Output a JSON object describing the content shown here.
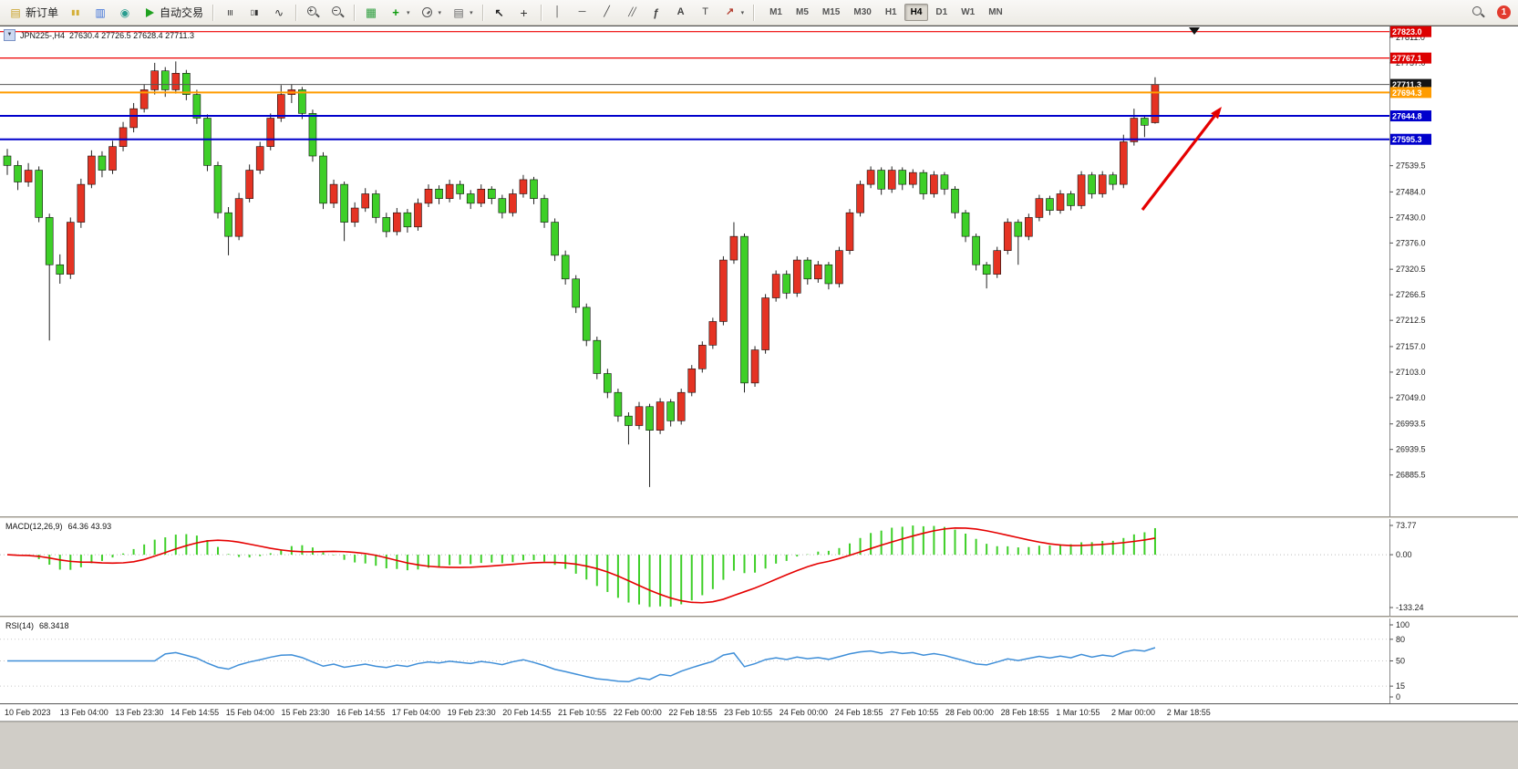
{
  "toolbar": {
    "new_order": "新订单",
    "autotrading": "自动交易",
    "badge": "1",
    "timeframes": [
      "M1",
      "M5",
      "M15",
      "M30",
      "H1",
      "H4",
      "D1",
      "W1",
      "MN"
    ],
    "active_timeframe": "H4",
    "items": [
      {
        "kind": "textbtn",
        "name": "new-order-button",
        "icon": "ico-neworder",
        "label_key": "new_order"
      },
      {
        "kind": "icon",
        "name": "charts-button",
        "icon": "ico-charts"
      },
      {
        "kind": "icon",
        "name": "market-watch-button",
        "icon": "ico-marketwatch"
      },
      {
        "kind": "icon",
        "name": "navigator-button",
        "icon": "ico-navigator"
      },
      {
        "kind": "textbtn",
        "name": "autotrading-button",
        "icon": "ico-play",
        "label_key": "autotrading"
      },
      {
        "kind": "sep"
      },
      {
        "kind": "icon",
        "name": "bar-chart-button",
        "icon": "ico-bars"
      },
      {
        "kind": "icon",
        "name": "candlestick-chart-button",
        "icon": "ico-candles"
      },
      {
        "kind": "icon",
        "name": "line-chart-button",
        "icon": "ico-line"
      },
      {
        "kind": "sep"
      },
      {
        "kind": "icon",
        "name": "zoom-in-button",
        "icon": "ico-zoomin"
      },
      {
        "kind": "icon",
        "name": "zoom-out-button",
        "icon": "ico-zoomout"
      },
      {
        "kind": "sep"
      },
      {
        "kind": "icon",
        "name": "tile-windows-button",
        "icon": "ico-tile"
      },
      {
        "kind": "iconcaret",
        "name": "indicators-button",
        "icon": "ico-indicator"
      },
      {
        "kind": "iconcaret",
        "name": "periods-button",
        "icon": "ico-clock"
      },
      {
        "kind": "iconcaret",
        "name": "templates-button",
        "icon": "ico-template"
      },
      {
        "kind": "sep"
      },
      {
        "kind": "icon",
        "name": "cursor-button",
        "icon": "ico-cursor"
      },
      {
        "kind": "icon",
        "name": "crosshair-button",
        "icon": "ico-crosshair"
      },
      {
        "kind": "sep"
      },
      {
        "kind": "icon",
        "name": "vertical-line-button",
        "icon": "ico-vline"
      },
      {
        "kind": "icon",
        "name": "horizontal-line-button",
        "icon": "ico-hline"
      },
      {
        "kind": "icon",
        "name": "trendline-button",
        "icon": "ico-trendline"
      },
      {
        "kind": "icon",
        "name": "equidistant-channel-button",
        "icon": "ico-channel"
      },
      {
        "kind": "icon",
        "name": "fibonacci-button",
        "icon": "ico-fibo"
      },
      {
        "kind": "icon",
        "name": "text-tool-button",
        "icon": "ico-text"
      },
      {
        "kind": "icon",
        "name": "text-label-button",
        "icon": "ico-label"
      },
      {
        "kind": "iconcaret",
        "name": "arrows-tool-button",
        "icon": "ico-shapes"
      },
      {
        "kind": "sep"
      },
      {
        "kind": "tfs"
      }
    ]
  },
  "chart": {
    "title": {
      "symbol": "JPN225-,H4",
      "ohlc": "27630.4 27726.5 27628.4 27711.3"
    },
    "y_range": [
      26800,
      27832
    ],
    "top_marker_x": 1310,
    "y_axis_ticks": [
      27811.0,
      27757.0,
      27539.5,
      27484.0,
      27430.0,
      27376.0,
      27320.5,
      27266.5,
      27212.5,
      27157.0,
      27103.0,
      27049.0,
      26993.5,
      26939.5,
      26885.5
    ],
    "price_lines": [
      {
        "label": "27823.0",
        "price": 27823.0,
        "color": "#ee0000",
        "box": "#dd0000",
        "width": 1.2,
        "name": "resistance-line-upper"
      },
      {
        "label": "27767.1",
        "price": 27767.1,
        "color": "#ee0000",
        "box": "#dd0000",
        "width": 1.2,
        "name": "resistance-line"
      },
      {
        "label": "27711.3",
        "price": 27711.3,
        "color": "#555555",
        "box": "#141414",
        "width": 1,
        "name": "current-price-line"
      },
      {
        "label": "27694.3",
        "price": 27694.3,
        "color": "#ff9c00",
        "box": "#ff9c00",
        "width": 2,
        "name": "orange-level-line"
      },
      {
        "label": "27644.8",
        "price": 27644.8,
        "color": "#0000cc",
        "box": "#0000cc",
        "width": 2,
        "name": "support-line-1"
      },
      {
        "label": "27595.3",
        "price": 27595.3,
        "color": "#0000cc",
        "box": "#0000cc",
        "width": 2,
        "name": "support-line-2"
      }
    ]
  },
  "chart_data": {
    "type": "candlestick",
    "symbol": "JPN225-",
    "timeframe": "H4",
    "current_bar": {
      "open": 27630.4,
      "high": 27726.5,
      "low": 27628.4,
      "close": 27711.3
    },
    "up_color": "#e53323",
    "down_color": "#3ecf28",
    "candles": [
      [
        27560,
        27575,
        27520,
        27540
      ],
      [
        27540,
        27550,
        27488,
        27505
      ],
      [
        27505,
        27545,
        27495,
        27530
      ],
      [
        27530,
        27538,
        27420,
        27430
      ],
      [
        27430,
        27438,
        27170,
        27330
      ],
      [
        27330,
        27352,
        27290,
        27310
      ],
      [
        27310,
        27430,
        27300,
        27420
      ],
      [
        27420,
        27512,
        27408,
        27500
      ],
      [
        27500,
        27572,
        27492,
        27560
      ],
      [
        27560,
        27570,
        27515,
        27530
      ],
      [
        27530,
        27592,
        27522,
        27580
      ],
      [
        27580,
        27632,
        27570,
        27620
      ],
      [
        27620,
        27672,
        27610,
        27660
      ],
      [
        27660,
        27712,
        27652,
        27700
      ],
      [
        27700,
        27757,
        27690,
        27740
      ],
      [
        27740,
        27748,
        27685,
        27700
      ],
      [
        27700,
        27760,
        27692,
        27735
      ],
      [
        27735,
        27742,
        27678,
        27690
      ],
      [
        27690,
        27700,
        27628,
        27640
      ],
      [
        27640,
        27648,
        27528,
        27540
      ],
      [
        27540,
        27548,
        27428,
        27440
      ],
      [
        27440,
        27452,
        27350,
        27390
      ],
      [
        27390,
        27482,
        27382,
        27470
      ],
      [
        27470,
        27542,
        27462,
        27530
      ],
      [
        27530,
        27590,
        27522,
        27580
      ],
      [
        27580,
        27650,
        27572,
        27640
      ],
      [
        27640,
        27710,
        27632,
        27690
      ],
      [
        27690,
        27712,
        27672,
        27700
      ],
      [
        27700,
        27706,
        27638,
        27650
      ],
      [
        27650,
        27658,
        27548,
        27560
      ],
      [
        27560,
        27568,
        27448,
        27460
      ],
      [
        27460,
        27510,
        27450,
        27500
      ],
      [
        27500,
        27506,
        27380,
        27420
      ],
      [
        27420,
        27462,
        27410,
        27450
      ],
      [
        27450,
        27492,
        27442,
        27480
      ],
      [
        27480,
        27488,
        27418,
        27430
      ],
      [
        27430,
        27440,
        27388,
        27400
      ],
      [
        27400,
        27450,
        27392,
        27440
      ],
      [
        27440,
        27448,
        27398,
        27410
      ],
      [
        27410,
        27470,
        27402,
        27460
      ],
      [
        27460,
        27500,
        27452,
        27490
      ],
      [
        27490,
        27498,
        27458,
        27470
      ],
      [
        27470,
        27510,
        27462,
        27500
      ],
      [
        27500,
        27508,
        27468,
        27480
      ],
      [
        27480,
        27488,
        27448,
        27460
      ],
      [
        27460,
        27500,
        27452,
        27490
      ],
      [
        27490,
        27496,
        27458,
        27470
      ],
      [
        27470,
        27478,
        27428,
        27440
      ],
      [
        27440,
        27490,
        27432,
        27480
      ],
      [
        27480,
        27520,
        27472,
        27510
      ],
      [
        27510,
        27516,
        27458,
        27470
      ],
      [
        27470,
        27478,
        27408,
        27420
      ],
      [
        27420,
        27428,
        27338,
        27350
      ],
      [
        27350,
        27360,
        27288,
        27300
      ],
      [
        27300,
        27308,
        27228,
        27240
      ],
      [
        27240,
        27248,
        27158,
        27170
      ],
      [
        27170,
        27178,
        27088,
        27100
      ],
      [
        27100,
        27110,
        27048,
        27060
      ],
      [
        27060,
        27068,
        26998,
        27010
      ],
      [
        27010,
        27018,
        26950,
        26990
      ],
      [
        26990,
        27040,
        26982,
        27030
      ],
      [
        27030,
        27036,
        26860,
        26980
      ],
      [
        26980,
        27048,
        26972,
        27040
      ],
      [
        27040,
        27046,
        26988,
        27000
      ],
      [
        27000,
        27068,
        26992,
        27060
      ],
      [
        27060,
        27118,
        27052,
        27110
      ],
      [
        27110,
        27168,
        27102,
        27160
      ],
      [
        27160,
        27218,
        27152,
        27210
      ],
      [
        27210,
        27348,
        27202,
        27340
      ],
      [
        27340,
        27420,
        27332,
        27390
      ],
      [
        27390,
        27396,
        27060,
        27080
      ],
      [
        27080,
        27158,
        27072,
        27150
      ],
      [
        27150,
        27268,
        27142,
        27260
      ],
      [
        27260,
        27318,
        27252,
        27310
      ],
      [
        27310,
        27318,
        27258,
        27270
      ],
      [
        27270,
        27348,
        27262,
        27340
      ],
      [
        27340,
        27346,
        27288,
        27300
      ],
      [
        27300,
        27338,
        27292,
        27330
      ],
      [
        27330,
        27336,
        27278,
        27290
      ],
      [
        27290,
        27368,
        27282,
        27360
      ],
      [
        27360,
        27448,
        27352,
        27440
      ],
      [
        27440,
        27508,
        27432,
        27500
      ],
      [
        27500,
        27538,
        27492,
        27530
      ],
      [
        27530,
        27536,
        27478,
        27490
      ],
      [
        27490,
        27538,
        27482,
        27530
      ],
      [
        27530,
        27536,
        27488,
        27500
      ],
      [
        27500,
        27532,
        27492,
        27525
      ],
      [
        27525,
        27531,
        27468,
        27480
      ],
      [
        27480,
        27528,
        27472,
        27520
      ],
      [
        27520,
        27526,
        27478,
        27490
      ],
      [
        27490,
        27496,
        27428,
        27440
      ],
      [
        27440,
        27446,
        27378,
        27390
      ],
      [
        27390,
        27396,
        27318,
        27330
      ],
      [
        27330,
        27336,
        27280,
        27310
      ],
      [
        27310,
        27368,
        27302,
        27360
      ],
      [
        27360,
        27428,
        27352,
        27420
      ],
      [
        27420,
        27426,
        27330,
        27390
      ],
      [
        27390,
        27438,
        27382,
        27430
      ],
      [
        27430,
        27478,
        27422,
        27470
      ],
      [
        27470,
        27476,
        27435,
        27445
      ],
      [
        27445,
        27488,
        27438,
        27480
      ],
      [
        27480,
        27486,
        27445,
        27455
      ],
      [
        27455,
        27528,
        27448,
        27520
      ],
      [
        27520,
        27526,
        27470,
        27480
      ],
      [
        27480,
        27528,
        27472,
        27520
      ],
      [
        27520,
        27526,
        27488,
        27500
      ],
      [
        27500,
        27605,
        27492,
        27590
      ],
      [
        27590,
        27660,
        27582,
        27640
      ],
      [
        27640,
        27646,
        27600,
        27625
      ],
      [
        27630.4,
        27726.5,
        27628.4,
        27711.3
      ]
    ],
    "time_labels": [
      "10 Feb 2023",
      "13 Feb 04:00",
      "13 Feb 23:30",
      "14 Feb 14:55",
      "15 Feb 04:00",
      "15 Feb 23:30",
      "16 Feb 14:55",
      "17 Feb 04:00",
      "19 Feb 23:30",
      "20 Feb 14:55",
      "21 Feb 10:55",
      "22 Feb 00:00",
      "22 Feb 18:55",
      "23 Feb 10:55",
      "24 Feb 00:00",
      "24 Feb 18:55",
      "27 Feb 10:55",
      "28 Feb 00:00",
      "28 Feb 18:55",
      "1 Mar 10:55",
      "2 Mar 00:00",
      "2 Mar 18:55"
    ]
  },
  "macd": {
    "title": "MACD(12,26,9)",
    "values": "64.36 43.93",
    "params": [
      12,
      26,
      9
    ],
    "axis_labels": [
      "73.77",
      "0.00",
      "-133.24"
    ],
    "range": [
      -133.24,
      73.77
    ],
    "histogram_color": "#3ecf28",
    "signal_color": "#e50000"
  },
  "rsi": {
    "title": "RSI(14)",
    "value": "68.3418",
    "period": 14,
    "levels": [
      80,
      50,
      15
    ],
    "axis_labels": [
      "100",
      "80",
      "50",
      "15",
      "0"
    ],
    "range": [
      0,
      100
    ],
    "line_color": "#3e8ed8"
  },
  "annotations": {
    "arrow": {
      "from": [
        1253,
        230
      ],
      "to": [
        1340,
        117
      ],
      "color": "#e50000"
    }
  }
}
